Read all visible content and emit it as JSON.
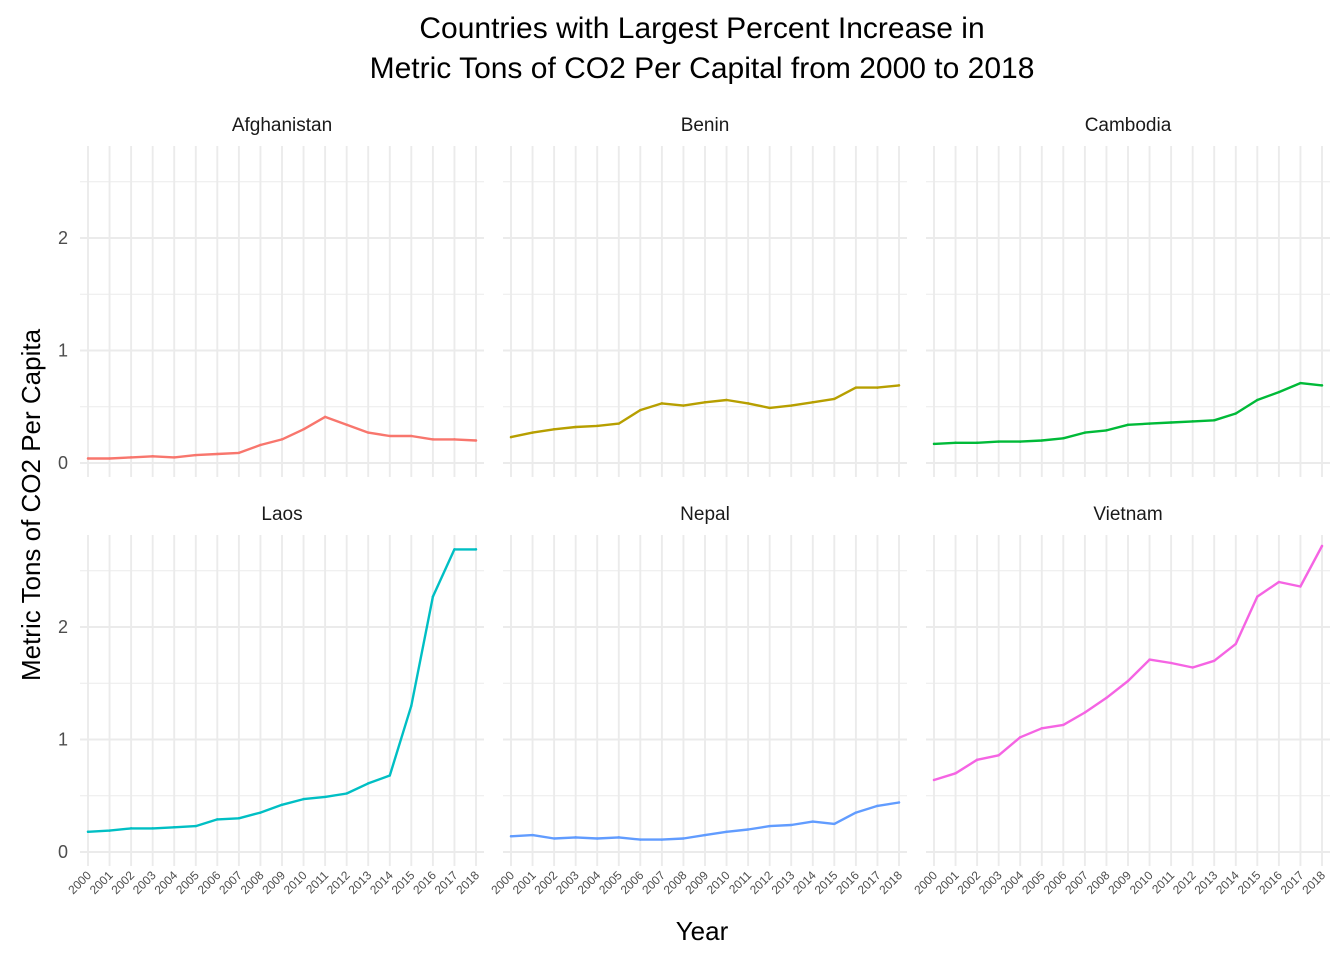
{
  "chart_data": {
    "type": "line",
    "title_lines": [
      "Countries with Largest Percent Increase in",
      "Metric Tons of CO2 Per Capital from 2000 to 2018"
    ],
    "xlabel": "Year",
    "ylabel": "Metric Tons of CO2 Per Capita",
    "ylim": [
      0,
      2.7
    ],
    "y_ticks": [
      "0",
      "1",
      "2"
    ],
    "grid": true,
    "legend": "none",
    "x": [
      "2000",
      "2001",
      "2002",
      "2003",
      "2004",
      "2005",
      "2006",
      "2007",
      "2008",
      "2009",
      "2010",
      "2011",
      "2012",
      "2013",
      "2014",
      "2015",
      "2016",
      "2017",
      "2018"
    ],
    "panels": [
      {
        "name": "Afghanistan",
        "color": "#F8766D",
        "values": [
          0.04,
          0.04,
          0.05,
          0.06,
          0.05,
          0.07,
          0.08,
          0.09,
          0.16,
          0.21,
          0.3,
          0.41,
          0.34,
          0.27,
          0.24,
          0.24,
          0.21,
          0.21,
          0.2
        ]
      },
      {
        "name": "Benin",
        "color": "#B79F00",
        "values": [
          0.23,
          0.27,
          0.3,
          0.32,
          0.33,
          0.35,
          0.47,
          0.53,
          0.51,
          0.54,
          0.56,
          0.53,
          0.49,
          0.51,
          0.54,
          0.57,
          0.67,
          0.67,
          0.69
        ]
      },
      {
        "name": "Cambodia",
        "color": "#00BA38",
        "values": [
          0.17,
          0.18,
          0.18,
          0.19,
          0.19,
          0.2,
          0.22,
          0.27,
          0.29,
          0.34,
          0.35,
          0.36,
          0.37,
          0.38,
          0.44,
          0.56,
          0.63,
          0.71,
          0.69
        ]
      },
      {
        "name": "Laos",
        "color": "#00BFC4",
        "values": [
          0.18,
          0.19,
          0.21,
          0.21,
          0.22,
          0.23,
          0.29,
          0.3,
          0.35,
          0.42,
          0.47,
          0.49,
          0.52,
          0.61,
          0.68,
          1.3,
          2.27,
          2.69,
          2.69
        ]
      },
      {
        "name": "Nepal",
        "color": "#619CFF",
        "values": [
          0.14,
          0.15,
          0.12,
          0.13,
          0.12,
          0.13,
          0.11,
          0.11,
          0.12,
          0.15,
          0.18,
          0.2,
          0.23,
          0.24,
          0.27,
          0.25,
          0.35,
          0.41,
          0.44
        ]
      },
      {
        "name": "Vietnam",
        "color": "#F564E3",
        "values": [
          0.64,
          0.7,
          0.82,
          0.86,
          1.02,
          1.1,
          1.13,
          1.24,
          1.37,
          1.52,
          1.71,
          1.68,
          1.64,
          1.7,
          1.85,
          2.27,
          2.4,
          2.36,
          2.72
        ]
      }
    ]
  }
}
